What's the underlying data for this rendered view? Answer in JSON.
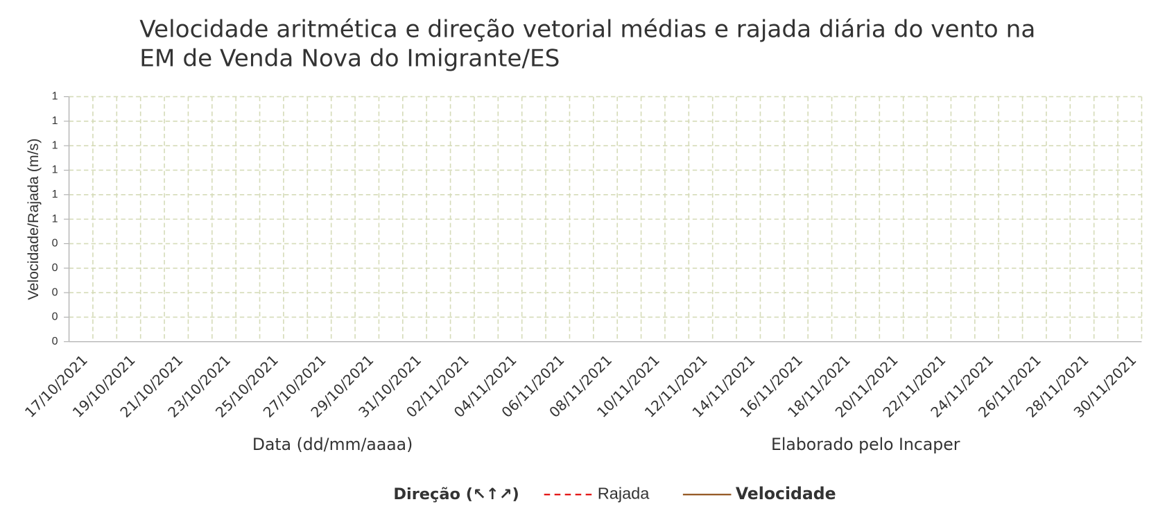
{
  "chart_data": {
    "type": "line",
    "title": [
      "Velocidade aritmética e direção vetorial médias e rajada diária do vento na",
      "EM de Venda Nova do Imigrante/ES"
    ],
    "y_label": "Velocidade/Rajada (m/s)",
    "x_label": "Data (dd/mm/aaaa)",
    "annotation": "Elaborado pelo Incaper",
    "categories": [
      "17/10/2021",
      null,
      "19/10/2021",
      null,
      "21/10/2021",
      null,
      "23/10/2021",
      null,
      "25/10/2021",
      null,
      "27/10/2021",
      null,
      "29/10/2021",
      null,
      "31/10/2021",
      null,
      "02/11/2021",
      null,
      "04/11/2021",
      null,
      "06/11/2021",
      null,
      "08/11/2021",
      null,
      "10/11/2021",
      null,
      "12/11/2021",
      null,
      "14/11/2021",
      null,
      "16/11/2021",
      null,
      "18/11/2021",
      null,
      "20/11/2021",
      null,
      "22/11/2021",
      null,
      "24/11/2021",
      null,
      "26/11/2021",
      null,
      "28/11/2021",
      null,
      "30/11/2021"
    ],
    "series": [
      {
        "name": "Direção (↖↑↗)",
        "color": "#8fac8f",
        "values": [
          null,
          null,
          null,
          null,
          null,
          null,
          null,
          null,
          null,
          null,
          null,
          null,
          null,
          null,
          null,
          null,
          null,
          null,
          null,
          null,
          null,
          null,
          null,
          null,
          null,
          null,
          null,
          null,
          null,
          null,
          null,
          null,
          null,
          null,
          null,
          null,
          null,
          null,
          null,
          null,
          null,
          null,
          null,
          null,
          null
        ]
      },
      {
        "name": "Rajada",
        "color": "#e00000",
        "values": [
          null,
          null,
          null,
          null,
          null,
          null,
          null,
          null,
          null,
          null,
          null,
          null,
          null,
          null,
          null,
          null,
          null,
          null,
          null,
          null,
          null,
          null,
          null,
          null,
          null,
          null,
          null,
          null,
          null,
          null,
          null,
          null,
          null,
          null,
          null,
          null,
          null,
          null,
          null,
          null,
          null,
          null,
          null,
          null,
          null
        ]
      },
      {
        "name": "Velocidade",
        "color": "#8b4a10",
        "values": [
          null,
          null,
          null,
          null,
          null,
          null,
          null,
          null,
          null,
          null,
          null,
          null,
          null,
          null,
          null,
          null,
          null,
          null,
          null,
          null,
          null,
          null,
          null,
          null,
          null,
          null,
          null,
          null,
          null,
          null,
          null,
          null,
          null,
          null,
          null,
          null,
          null,
          null,
          null,
          null,
          null,
          null,
          null,
          null,
          null
        ]
      }
    ],
    "ylim": [
      0,
      1
    ],
    "yticks": [
      0,
      {
        "value": 0.1,
        "label": "0"
      },
      {
        "value": 0.2,
        "label": "0"
      },
      {
        "value": 0.3,
        "label": "0"
      },
      {
        "value": 0.4,
        "label": "0"
      },
      {
        "value": 0.5,
        "label": "1"
      },
      {
        "value": 0.6,
        "label": "1"
      },
      {
        "value": 0.7,
        "label": "1"
      },
      {
        "value": 0.8,
        "label": "1"
      },
      {
        "value": 0.9,
        "label": "1"
      },
      1
    ],
    "grid": true
  }
}
